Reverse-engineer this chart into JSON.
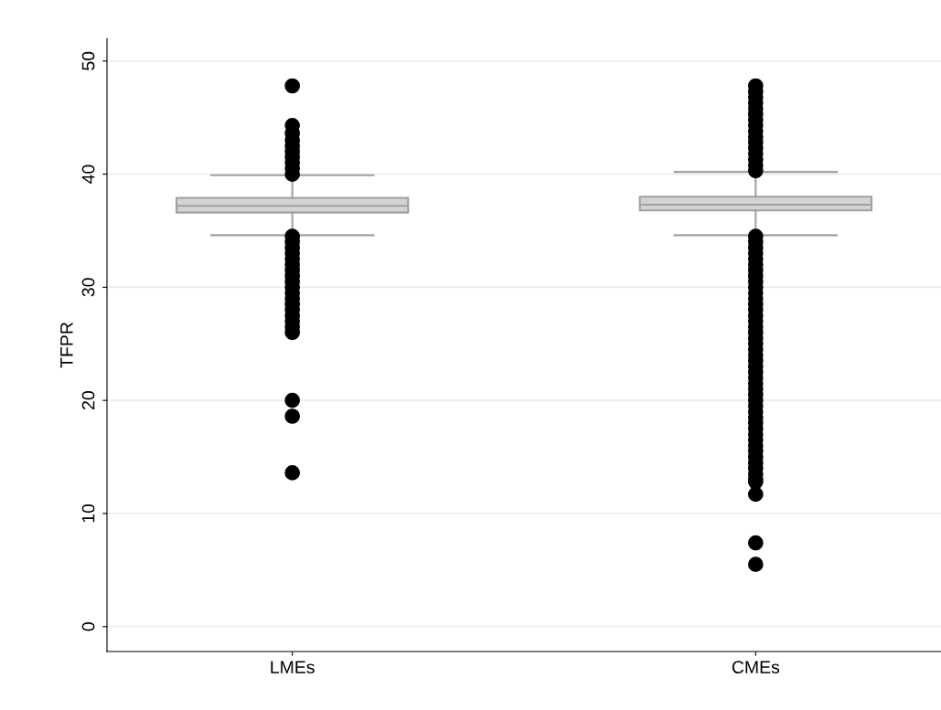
{
  "chart_data": {
    "type": "box",
    "ylabel": "TFPR",
    "categories": [
      "LMEs",
      "CMEs"
    ],
    "boxes": [
      {
        "low": 34.6,
        "q1": 36.6,
        "median": 37.2,
        "q3": 37.9,
        "high": 39.9,
        "outliers": [
          40.0,
          40.5,
          41.0,
          41.5,
          42.0,
          42.5,
          43.0,
          43.6,
          44.3,
          47.8,
          34.5,
          34.0,
          33.5,
          33.0,
          32.5,
          32.0,
          31.5,
          31.0,
          30.5,
          30.0,
          29.5,
          29.0,
          28.5,
          28.0,
          27.5,
          27.0,
          26.5,
          26.0,
          20.0,
          18.6,
          13.6
        ]
      },
      {
        "low": 34.6,
        "q1": 36.8,
        "median": 37.3,
        "q3": 38.0,
        "high": 40.2,
        "outliers": [
          40.3,
          40.8,
          41.3,
          41.8,
          42.3,
          42.8,
          43.3,
          43.8,
          44.3,
          44.8,
          45.3,
          45.8,
          46.3,
          46.8,
          47.3,
          47.8,
          34.5,
          34.0,
          33.5,
          33.0,
          32.5,
          32.0,
          31.5,
          31.0,
          30.5,
          30.0,
          29.5,
          29.0,
          28.5,
          28.0,
          27.5,
          27.0,
          26.5,
          26.0,
          25.5,
          25.0,
          24.5,
          24.0,
          23.5,
          23.0,
          22.5,
          22.0,
          21.5,
          21.0,
          20.5,
          20.0,
          19.5,
          19.0,
          18.5,
          18.0,
          17.5,
          17.0,
          16.5,
          16.0,
          15.5,
          15.0,
          14.5,
          14.0,
          13.5,
          13.0,
          12.8,
          11.7,
          7.4,
          5.5
        ]
      }
    ],
    "color": "#d3d3d3",
    "ylim": [
      -2.2,
      52
    ],
    "yticks": [
      0,
      10,
      20,
      30,
      40,
      50
    ],
    "grid": "y",
    "legend": false
  }
}
